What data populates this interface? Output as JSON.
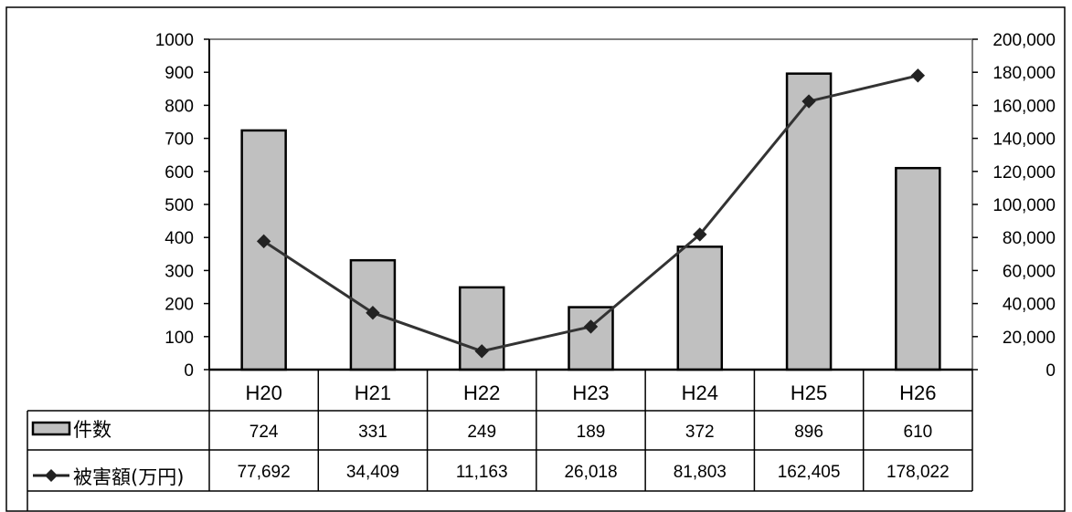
{
  "chart_data": {
    "type": "bar",
    "categories": [
      "H20",
      "H21",
      "H22",
      "H23",
      "H24",
      "H25",
      "H26"
    ],
    "series": [
      {
        "name": "件数",
        "type": "bar",
        "axis": "left",
        "color": "#c0c0c0",
        "values": [
          724,
          331,
          249,
          189,
          372,
          896,
          610
        ],
        "labels": [
          "724",
          "331",
          "249",
          "189",
          "372",
          "896",
          "610"
        ]
      },
      {
        "name": "被害額(万円)",
        "type": "line",
        "axis": "right",
        "color": "#333333",
        "marker": "diamond",
        "values": [
          77692,
          34409,
          11163,
          26018,
          81803,
          162405,
          178022
        ],
        "labels": [
          "77,692",
          "34,409",
          "11,163",
          "26,018",
          "81,803",
          "162,405",
          "178,022"
        ]
      }
    ],
    "ylim_left": [
      0,
      1000
    ],
    "yticks_left": [
      "0",
      "100",
      "200",
      "300",
      "400",
      "500",
      "600",
      "700",
      "800",
      "900",
      "1000"
    ],
    "ylim_right": [
      0,
      200000
    ],
    "yticks_right": [
      "0",
      "20,000",
      "40,000",
      "60,000",
      "80,000",
      "100,000",
      "120,000",
      "140,000",
      "160,000",
      "180,000",
      "200,000"
    ],
    "grid": false,
    "legend": "data-table"
  }
}
